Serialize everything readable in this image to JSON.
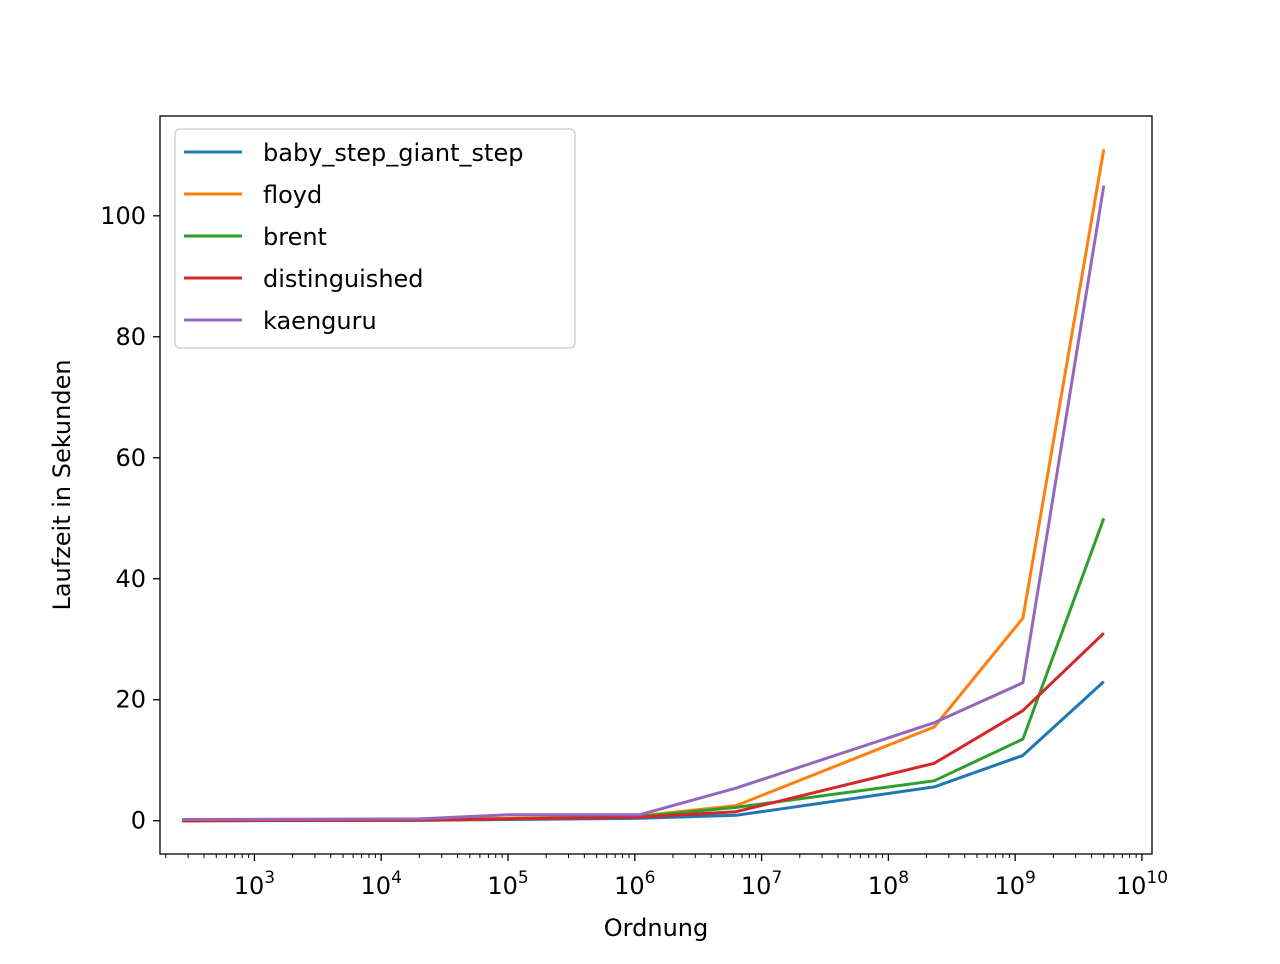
{
  "chart_data": {
    "type": "line",
    "title": "",
    "xlabel": "Ordnung",
    "ylabel": "Laufzeit in Sekunden",
    "xscale": "log",
    "xlim": [
      180,
      12000000000
    ],
    "ylim": [
      -5.5,
      116.5
    ],
    "grid": false,
    "legend_position": "top-left",
    "x_tick_labels": [
      {
        "value": 1000,
        "base": "10",
        "exp": "3"
      },
      {
        "value": 10000,
        "base": "10",
        "exp": "4"
      },
      {
        "value": 100000,
        "base": "10",
        "exp": "5"
      },
      {
        "value": 1000000,
        "base": "10",
        "exp": "6"
      },
      {
        "value": 10000000,
        "base": "10",
        "exp": "7"
      },
      {
        "value": 100000000,
        "base": "10",
        "exp": "8"
      },
      {
        "value": 1000000000,
        "base": "10",
        "exp": "9"
      },
      {
        "value": 10000000000,
        "base": "10",
        "exp": "10"
      }
    ],
    "y_ticks": [
      0,
      20,
      40,
      60,
      80,
      100
    ],
    "x": [
      270,
      20000,
      100000,
      1100000,
      6300000,
      230000000,
      1150000000,
      5000000000
    ],
    "series": [
      {
        "name": "baby_step_giant_step",
        "color": "#1f77b4",
        "values": [
          0.0,
          0.05,
          0.2,
          0.4,
          0.9,
          5.6,
          10.8,
          23.0
        ]
      },
      {
        "name": "floyd",
        "color": "#ff7f0e",
        "values": [
          0.0,
          0.1,
          0.4,
          0.8,
          2.5,
          15.5,
          33.5,
          111.0
        ]
      },
      {
        "name": "brent",
        "color": "#2ca02c",
        "values": [
          0.0,
          0.1,
          0.3,
          0.7,
          2.2,
          6.6,
          13.5,
          50.0
        ]
      },
      {
        "name": "distinguished",
        "color": "#d62728",
        "values": [
          0.0,
          0.1,
          0.3,
          0.6,
          1.5,
          9.5,
          18.2,
          31.0
        ]
      },
      {
        "name": "kaenguru",
        "color": "#9467bd",
        "values": [
          0.2,
          0.3,
          1.0,
          1.0,
          5.4,
          16.2,
          22.8,
          105.0
        ]
      }
    ]
  }
}
